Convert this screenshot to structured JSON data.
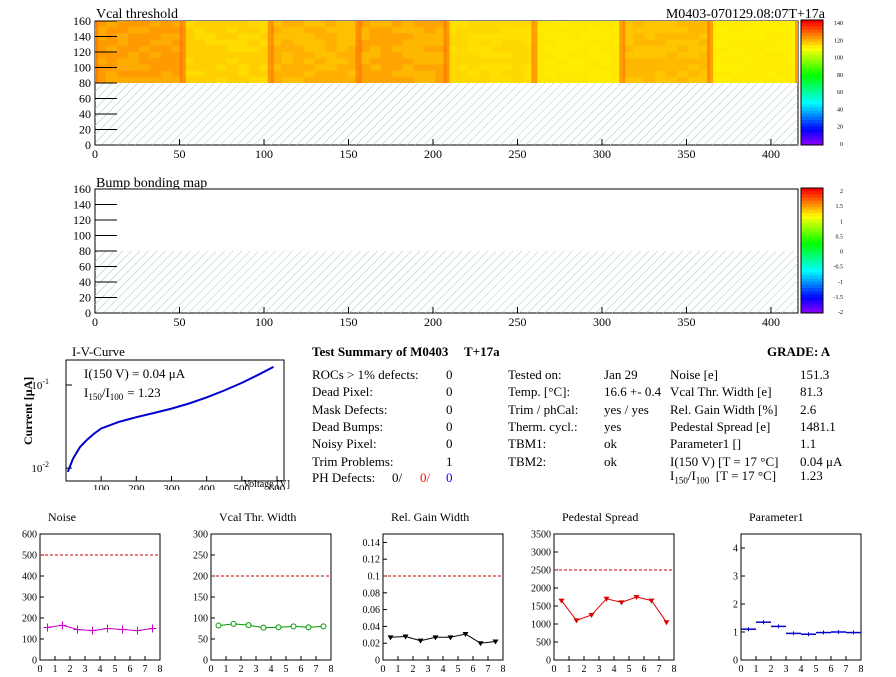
{
  "colors": {
    "noise": "#cc00cc",
    "vcal": "#009900",
    "gain": "#000000",
    "pedestal": "#dd0000",
    "param1": "#0000cc",
    "iv": "#0000cc",
    "limit": "#cc0000",
    "hatch": "#a8c8c8",
    "ph_red": "#ff0000",
    "ph_blue": "#0000ff"
  },
  "maps": [
    {
      "title": "Vcal threshold",
      "corner_label": "M0403-070129.08:07T+17a",
      "x_ticks": [
        "0",
        "50",
        "100",
        "150",
        "200",
        "250",
        "300",
        "350",
        "400"
      ],
      "y_ticks": [
        "0",
        "20",
        "40",
        "60",
        "80",
        "100",
        "120",
        "140",
        "160"
      ],
      "palette_ticks": [
        "140",
        "120",
        "100",
        "80",
        "60",
        "40",
        "20",
        "0"
      ],
      "upper_half_filled": true,
      "palette_min": 0,
      "palette_max": 140
    },
    {
      "title": "Bump bonding map",
      "x_ticks": [
        "0",
        "50",
        "100",
        "150",
        "200",
        "250",
        "300",
        "350",
        "400"
      ],
      "y_ticks": [
        "0",
        "20",
        "40",
        "60",
        "80",
        "100",
        "120",
        "140",
        "160"
      ],
      "palette_ticks": [
        "2",
        "1.5",
        "1",
        "0.5",
        "0",
        "-0.5",
        "-1",
        "-1.5",
        "-2"
      ],
      "upper_half_filled": false,
      "palette_min": -2,
      "palette_max": 2
    }
  ],
  "iv": {
    "title": "I-V-Curve",
    "legend1": "I(150 V) = 0.04 μA",
    "legend2_prefix": "I",
    "legend2_sub1": "150",
    "legend2_mid": "/I",
    "legend2_sub2": "100",
    "legend2_value": "=  1.23",
    "ylabel": "Current [μA]",
    "xlabel": "Voltage [V]",
    "x_ticks": [
      "100",
      "200",
      "300",
      "400",
      "500",
      "600"
    ],
    "y_tick_top": "10",
    "y_tick_top_exp": "-1",
    "y_tick_bottom": "10",
    "y_tick_bottom_exp": "-2",
    "chart_data": {
      "type": "line",
      "x": [
        5,
        20,
        40,
        60,
        80,
        100,
        150,
        200,
        250,
        300,
        350,
        400,
        450,
        500,
        550,
        590
      ],
      "y": [
        0.009,
        0.013,
        0.018,
        0.022,
        0.026,
        0.03,
        0.036,
        0.041,
        0.046,
        0.052,
        0.06,
        0.071,
        0.086,
        0.106,
        0.135,
        0.165
      ],
      "xlim": [
        0,
        620
      ],
      "ylim": [
        0.007,
        0.2
      ],
      "yscale": "log"
    }
  },
  "summary": {
    "title": "Test Summary of M0403",
    "temp_tag": "T+17a",
    "grade": "GRADE:  A",
    "col1": [
      {
        "label": "ROCs > 1% defects:",
        "value": "0"
      },
      {
        "label": "Dead Pixel:",
        "value": "0"
      },
      {
        "label": "Mask Defects:",
        "value": "0"
      },
      {
        "label": "Dead Bumps:",
        "value": "0"
      },
      {
        "label": "Noisy Pixel:",
        "value": "0"
      },
      {
        "label": "Trim Problems:",
        "value": "1"
      }
    ],
    "ph_label": "PH Defects:",
    "ph_values": [
      "0/",
      "0/",
      "0"
    ],
    "col2": [
      {
        "label": "Tested on:",
        "value": "Jan 29"
      },
      {
        "label": "Temp. [°C]:",
        "value": "16.6 +- 0.4"
      },
      {
        "label": "Trim / phCal:",
        "value": "yes / yes"
      },
      {
        "label": "Therm. cycl.:",
        "value": "yes"
      },
      {
        "label": "TBM1:",
        "value": "ok"
      },
      {
        "label": "TBM2:",
        "value": "ok"
      }
    ],
    "col3": [
      {
        "label": "Noise [e]",
        "value": "151.3"
      },
      {
        "label": "Vcal Thr. Width [e]",
        "value": "81.3"
      },
      {
        "label": "Rel. Gain Width [%]",
        "value": "2.6"
      },
      {
        "label": "Pedestal Spread [e]",
        "value": "1481.1"
      },
      {
        "label": "Parameter1 []",
        "value": "1.1"
      },
      {
        "label": "I(150 V) [T = 17 °C]",
        "value": "0.04 μA"
      }
    ],
    "ratio_label_prefix": "I",
    "ratio_sub1": "150",
    "ratio_mid": "/I",
    "ratio_sub2": "100",
    "ratio_suffix": "[T = 17 °C]",
    "ratio_value": "1.23"
  },
  "chart_data": [
    {
      "type": "line",
      "title": "Noise",
      "x": [
        0.5,
        1.5,
        2.5,
        3.5,
        4.5,
        5.5,
        6.5,
        7.5
      ],
      "values": [
        155,
        165,
        145,
        140,
        150,
        145,
        140,
        150
      ],
      "ylim": [
        0,
        600
      ],
      "y_ticks": [
        "0",
        "100",
        "200",
        "300",
        "400",
        "500",
        "600"
      ],
      "y_tick_values": [
        0,
        100,
        200,
        300,
        400,
        500,
        600
      ],
      "limit": 500,
      "marker": "plus",
      "colorKey": "noise"
    },
    {
      "type": "line",
      "title": "Vcal Thr. Width",
      "x": [
        0.5,
        1.5,
        2.5,
        3.5,
        4.5,
        5.5,
        6.5,
        7.5
      ],
      "values": [
        82,
        86,
        83,
        77,
        78,
        80,
        78,
        80
      ],
      "ylim": [
        0,
        300
      ],
      "y_ticks": [
        "0",
        "50",
        "100",
        "150",
        "200",
        "250",
        "300"
      ],
      "y_tick_values": [
        0,
        50,
        100,
        150,
        200,
        250,
        300
      ],
      "limit": 200,
      "marker": "circle",
      "colorKey": "vcal"
    },
    {
      "type": "line",
      "title": "Rel. Gain Width",
      "x": [
        0.5,
        1.5,
        2.5,
        3.5,
        4.5,
        5.5,
        6.5,
        7.5
      ],
      "values": [
        0.027,
        0.028,
        0.023,
        0.027,
        0.027,
        0.031,
        0.02,
        0.022
      ],
      "ylim": [
        0,
        0.15
      ],
      "y_ticks": [
        "0",
        "0.02",
        "0.04",
        "0.06",
        "0.08",
        "0.1",
        "0.12",
        "0.14"
      ],
      "y_tick_values": [
        0,
        0.02,
        0.04,
        0.06,
        0.08,
        0.1,
        0.12,
        0.14
      ],
      "limit": 0.1,
      "marker": "tri",
      "colorKey": "gain"
    },
    {
      "type": "line",
      "title": "Pedestal Spread",
      "x": [
        0.5,
        1.5,
        2.5,
        3.5,
        4.5,
        5.5,
        6.5,
        7.5
      ],
      "values": [
        1650,
        1100,
        1250,
        1700,
        1600,
        1750,
        1650,
        1050
      ],
      "ylim": [
        0,
        3500
      ],
      "y_ticks": [
        "0",
        "500",
        "1000",
        "1500",
        "2000",
        "2500",
        "3000",
        "3500"
      ],
      "y_tick_values": [
        0,
        500,
        1000,
        1500,
        2000,
        2500,
        3000,
        3500
      ],
      "limit": 2500,
      "marker": "tri",
      "colorKey": "pedestal"
    },
    {
      "type": "histogram",
      "title": "Parameter1",
      "x": [
        0.5,
        1.5,
        2.5,
        3.5,
        4.5,
        5.5,
        6.5,
        7.5
      ],
      "values": [
        1.1,
        1.35,
        1.2,
        0.95,
        0.92,
        0.98,
        1.0,
        0.98
      ],
      "ylim": [
        0,
        4.5
      ],
      "y_ticks": [
        "0",
        "1",
        "2",
        "3",
        "4"
      ],
      "y_tick_values": [
        0,
        1,
        2,
        3,
        4
      ],
      "limit": null,
      "marker": "hbar",
      "colorKey": "param1"
    }
  ],
  "small_x_ticks": [
    "0",
    "1",
    "2",
    "3",
    "4",
    "5",
    "6",
    "7",
    "8"
  ]
}
